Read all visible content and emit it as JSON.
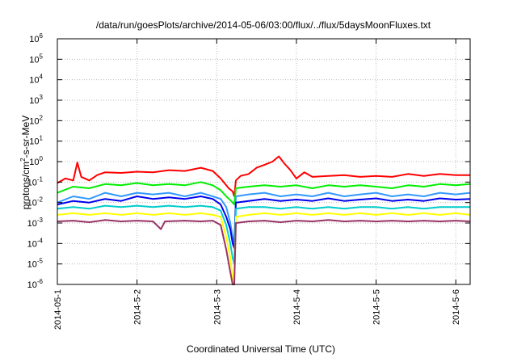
{
  "chart_data": {
    "type": "line",
    "title": "/data/run/goesPlots/archive/2014-05-06/03:00/flux/../flux/5daysMoonFluxes.txt",
    "xlabel": "Coordinated Universal Time (UTC)",
    "ylabel": "protons/cm²-s-sr-MeV",
    "ylabel_base": "protons/cm",
    "ylabel_sup": "2",
    "ylabel_rest": "-s-sr-MeV",
    "y_scale": "log",
    "ylim": [
      1e-06,
      1000000.0
    ],
    "y_ticks": [
      {
        "value": 1e-06,
        "exp": "-6"
      },
      {
        "value": 1e-05,
        "exp": "-5"
      },
      {
        "value": 0.0001,
        "exp": "-4"
      },
      {
        "value": 0.001,
        "exp": "-3"
      },
      {
        "value": 0.01,
        "exp": "-2"
      },
      {
        "value": 0.1,
        "exp": "-1"
      },
      {
        "value": 1,
        "exp": "0"
      },
      {
        "value": 10,
        "exp": "1"
      },
      {
        "value": 100,
        "exp": "2"
      },
      {
        "value": 1000,
        "exp": "3"
      },
      {
        "value": 10000,
        "exp": "4"
      },
      {
        "value": 100000,
        "exp": "5"
      },
      {
        "value": 1000000,
        "exp": "6"
      }
    ],
    "y_tick_base": "10",
    "x_unit": "days",
    "xlim": [
      0,
      5.18
    ],
    "x_ticks": [
      {
        "value": 0,
        "label": "2014-05-1"
      },
      {
        "value": 1,
        "label": "2014-5-2"
      },
      {
        "value": 2,
        "label": "2014-5-3"
      },
      {
        "value": 3,
        "label": "2014-5-4"
      },
      {
        "value": 4,
        "label": "2014-5-5"
      },
      {
        "value": 5,
        "label": "2014-5-6"
      }
    ],
    "grid": true,
    "series": [
      {
        "color": "#ff0000",
        "points": [
          [
            0,
            0.09
          ],
          [
            0.1,
            0.15
          ],
          [
            0.2,
            0.12
          ],
          [
            0.25,
            0.9
          ],
          [
            0.3,
            0.18
          ],
          [
            0.4,
            0.12
          ],
          [
            0.5,
            0.22
          ],
          [
            0.6,
            0.3
          ],
          [
            0.8,
            0.28
          ],
          [
            1.0,
            0.32
          ],
          [
            1.2,
            0.3
          ],
          [
            1.4,
            0.38
          ],
          [
            1.6,
            0.35
          ],
          [
            1.8,
            0.5
          ],
          [
            1.95,
            0.35
          ],
          [
            2.05,
            0.15
          ],
          [
            2.15,
            0.05
          ],
          [
            2.2,
            0.035
          ],
          [
            2.22,
            0.02
          ],
          [
            2.24,
            0.12
          ],
          [
            2.3,
            0.2
          ],
          [
            2.4,
            0.25
          ],
          [
            2.5,
            0.5
          ],
          [
            2.6,
            0.7
          ],
          [
            2.7,
            1.0
          ],
          [
            2.78,
            1.8
          ],
          [
            2.85,
            0.8
          ],
          [
            2.92,
            0.4
          ],
          [
            3.0,
            0.15
          ],
          [
            3.1,
            0.3
          ],
          [
            3.2,
            0.18
          ],
          [
            3.4,
            0.2
          ],
          [
            3.6,
            0.22
          ],
          [
            3.8,
            0.18
          ],
          [
            4.0,
            0.2
          ],
          [
            4.2,
            0.18
          ],
          [
            4.4,
            0.25
          ],
          [
            4.6,
            0.2
          ],
          [
            4.8,
            0.25
          ],
          [
            5.0,
            0.22
          ],
          [
            5.18,
            0.22
          ]
        ]
      },
      {
        "color": "#00ee00",
        "points": [
          [
            0,
            0.03
          ],
          [
            0.2,
            0.06
          ],
          [
            0.4,
            0.05
          ],
          [
            0.6,
            0.08
          ],
          [
            0.8,
            0.07
          ],
          [
            1.0,
            0.09
          ],
          [
            1.2,
            0.07
          ],
          [
            1.4,
            0.08
          ],
          [
            1.6,
            0.07
          ],
          [
            1.8,
            0.1
          ],
          [
            1.95,
            0.07
          ],
          [
            2.05,
            0.04
          ],
          [
            2.12,
            0.02
          ],
          [
            2.18,
            0.012
          ],
          [
            2.2,
            0.01
          ],
          [
            2.22,
            0.008
          ],
          [
            2.24,
            0.05
          ],
          [
            2.4,
            0.06
          ],
          [
            2.6,
            0.07
          ],
          [
            2.8,
            0.06
          ],
          [
            3.0,
            0.07
          ],
          [
            3.2,
            0.05
          ],
          [
            3.4,
            0.07
          ],
          [
            3.6,
            0.06
          ],
          [
            3.8,
            0.07
          ],
          [
            4.0,
            0.06
          ],
          [
            4.2,
            0.05
          ],
          [
            4.4,
            0.07
          ],
          [
            4.6,
            0.06
          ],
          [
            4.8,
            0.08
          ],
          [
            5.0,
            0.07
          ],
          [
            5.18,
            0.08
          ]
        ]
      },
      {
        "color": "#3399ff",
        "points": [
          [
            0,
            0.01
          ],
          [
            0.2,
            0.02
          ],
          [
            0.4,
            0.015
          ],
          [
            0.6,
            0.03
          ],
          [
            0.8,
            0.02
          ],
          [
            1.0,
            0.03
          ],
          [
            1.2,
            0.025
          ],
          [
            1.4,
            0.03
          ],
          [
            1.6,
            0.02
          ],
          [
            1.8,
            0.03
          ],
          [
            1.95,
            0.02
          ],
          [
            2.05,
            0.015
          ],
          [
            2.12,
            0.006
          ],
          [
            2.17,
            0.001
          ],
          [
            2.2,
            0.0002
          ],
          [
            2.22,
            0.0001
          ],
          [
            2.24,
            0.02
          ],
          [
            2.4,
            0.025
          ],
          [
            2.6,
            0.03
          ],
          [
            2.8,
            0.02
          ],
          [
            3.0,
            0.025
          ],
          [
            3.2,
            0.02
          ],
          [
            3.4,
            0.03
          ],
          [
            3.6,
            0.02
          ],
          [
            3.8,
            0.025
          ],
          [
            4.0,
            0.03
          ],
          [
            4.2,
            0.02
          ],
          [
            4.4,
            0.025
          ],
          [
            4.6,
            0.02
          ],
          [
            4.8,
            0.03
          ],
          [
            5.0,
            0.025
          ],
          [
            5.18,
            0.03
          ]
        ]
      },
      {
        "color": "#0000ee",
        "points": [
          [
            0,
            0.008
          ],
          [
            0.2,
            0.012
          ],
          [
            0.4,
            0.01
          ],
          [
            0.6,
            0.015
          ],
          [
            0.8,
            0.012
          ],
          [
            1.0,
            0.02
          ],
          [
            1.2,
            0.015
          ],
          [
            1.4,
            0.018
          ],
          [
            1.6,
            0.015
          ],
          [
            1.8,
            0.02
          ],
          [
            1.95,
            0.015
          ],
          [
            2.05,
            0.008
          ],
          [
            2.12,
            0.002
          ],
          [
            2.17,
            0.0005
          ],
          [
            2.2,
            0.0001
          ],
          [
            2.22,
            6e-05
          ],
          [
            2.24,
            0.01
          ],
          [
            2.4,
            0.012
          ],
          [
            2.6,
            0.015
          ],
          [
            2.8,
            0.012
          ],
          [
            3.0,
            0.014
          ],
          [
            3.2,
            0.012
          ],
          [
            3.4,
            0.016
          ],
          [
            3.6,
            0.012
          ],
          [
            3.8,
            0.014
          ],
          [
            4.0,
            0.016
          ],
          [
            4.2,
            0.012
          ],
          [
            4.4,
            0.014
          ],
          [
            4.6,
            0.012
          ],
          [
            4.8,
            0.016
          ],
          [
            5.0,
            0.014
          ],
          [
            5.18,
            0.015
          ]
        ]
      },
      {
        "color": "#00cccc",
        "points": [
          [
            0,
            0.005
          ],
          [
            0.2,
            0.006
          ],
          [
            0.4,
            0.005
          ],
          [
            0.6,
            0.007
          ],
          [
            0.8,
            0.006
          ],
          [
            1.0,
            0.007
          ],
          [
            1.2,
            0.006
          ],
          [
            1.4,
            0.007
          ],
          [
            1.6,
            0.006
          ],
          [
            1.8,
            0.007
          ],
          [
            1.95,
            0.006
          ],
          [
            2.05,
            0.004
          ],
          [
            2.12,
            0.0008
          ],
          [
            2.17,
            0.0001
          ],
          [
            2.2,
            2e-05
          ],
          [
            2.22,
            1e-05
          ],
          [
            2.24,
            0.005
          ],
          [
            2.4,
            0.006
          ],
          [
            2.6,
            0.006
          ],
          [
            2.8,
            0.005
          ],
          [
            3.0,
            0.006
          ],
          [
            3.2,
            0.005
          ],
          [
            3.4,
            0.006
          ],
          [
            3.6,
            0.005
          ],
          [
            3.8,
            0.006
          ],
          [
            4.0,
            0.006
          ],
          [
            4.2,
            0.005
          ],
          [
            4.4,
            0.006
          ],
          [
            4.6,
            0.005
          ],
          [
            4.8,
            0.006
          ],
          [
            5.0,
            0.006
          ],
          [
            5.18,
            0.006
          ]
        ]
      },
      {
        "color": "#ffff00",
        "points": [
          [
            0,
            0.0025
          ],
          [
            0.2,
            0.003
          ],
          [
            0.4,
            0.0025
          ],
          [
            0.6,
            0.003
          ],
          [
            0.8,
            0.0025
          ],
          [
            1.0,
            0.003
          ],
          [
            1.2,
            0.0025
          ],
          [
            1.4,
            0.003
          ],
          [
            1.6,
            0.0025
          ],
          [
            1.8,
            0.003
          ],
          [
            1.95,
            0.0025
          ],
          [
            2.05,
            0.002
          ],
          [
            2.12,
            0.0002
          ],
          [
            2.17,
            2e-05
          ],
          [
            2.2,
            2e-06
          ],
          [
            2.22,
            1e-06
          ],
          [
            2.24,
            0.002
          ],
          [
            2.4,
            0.0025
          ],
          [
            2.6,
            0.003
          ],
          [
            2.8,
            0.0025
          ],
          [
            3.0,
            0.003
          ],
          [
            3.2,
            0.0025
          ],
          [
            3.4,
            0.003
          ],
          [
            3.6,
            0.0025
          ],
          [
            3.8,
            0.003
          ],
          [
            4.0,
            0.0025
          ],
          [
            4.2,
            0.003
          ],
          [
            4.4,
            0.0025
          ],
          [
            4.6,
            0.003
          ],
          [
            4.8,
            0.0025
          ],
          [
            5.0,
            0.003
          ],
          [
            5.18,
            0.0025
          ]
        ]
      },
      {
        "color": "#993366",
        "points": [
          [
            0,
            0.0012
          ],
          [
            0.2,
            0.0013
          ],
          [
            0.4,
            0.0011
          ],
          [
            0.6,
            0.0014
          ],
          [
            0.8,
            0.0012
          ],
          [
            1.0,
            0.0013
          ],
          [
            1.2,
            0.0012
          ],
          [
            1.3,
            0.0005
          ],
          [
            1.35,
            0.0012
          ],
          [
            1.6,
            0.0013
          ],
          [
            1.8,
            0.0012
          ],
          [
            1.95,
            0.0013
          ],
          [
            2.05,
            0.0008
          ],
          [
            2.12,
            5e-05
          ],
          [
            2.17,
            4e-06
          ],
          [
            2.2,
            1e-06
          ],
          [
            2.22,
            1e-06
          ],
          [
            2.24,
            0.001
          ],
          [
            2.4,
            0.0012
          ],
          [
            2.6,
            0.0013
          ],
          [
            2.8,
            0.0011
          ],
          [
            3.0,
            0.0013
          ],
          [
            3.2,
            0.0012
          ],
          [
            3.4,
            0.0014
          ],
          [
            3.6,
            0.0012
          ],
          [
            3.8,
            0.0013
          ],
          [
            4.0,
            0.0012
          ],
          [
            4.2,
            0.0013
          ],
          [
            4.4,
            0.0012
          ],
          [
            4.6,
            0.0013
          ],
          [
            4.8,
            0.0012
          ],
          [
            5.0,
            0.0013
          ],
          [
            5.18,
            0.0012
          ]
        ]
      }
    ]
  }
}
